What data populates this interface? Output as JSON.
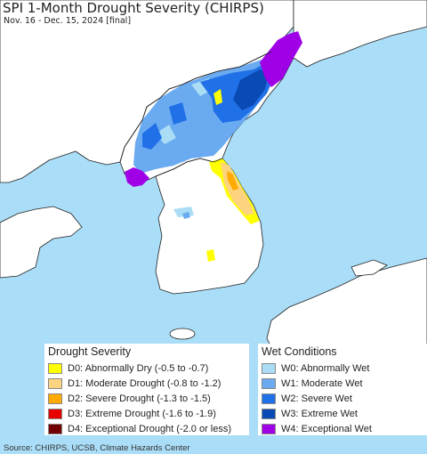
{
  "header": {
    "title": "SPI 1-Month Drought Severity (CHIRPS)",
    "subtitle": "Nov. 16 - Dec. 15, 2024 [final]"
  },
  "legend": {
    "drought": {
      "heading": "Drought Severity",
      "items": [
        {
          "label": "D0: Abnormally Dry (-0.5 to -0.7)",
          "color": "#ffff00"
        },
        {
          "label": "D1: Moderate Drought (-0.8 to -1.2)",
          "color": "#fcd37f"
        },
        {
          "label": "D2: Severe Drought (-1.3 to -1.5)",
          "color": "#ffaa00"
        },
        {
          "label": "D3: Extreme Drought (-1.6 to -1.9)",
          "color": "#e60000"
        },
        {
          "label": "D4: Exceptional Drought (-2.0 or less)",
          "color": "#730000"
        }
      ]
    },
    "wet": {
      "heading": "Wet Conditions",
      "items": [
        {
          "label": "W0: Abnormally Wet",
          "color": "#aadcf5"
        },
        {
          "label": "W1: Moderate Wet",
          "color": "#6aaaf0"
        },
        {
          "label": "W2: Severe Wet",
          "color": "#2070e8"
        },
        {
          "label": "W3: Extreme Wet",
          "color": "#0a4ab4"
        },
        {
          "label": "W4: Exceptional Wet",
          "color": "#a000e6"
        }
      ]
    }
  },
  "map": {
    "water_color": "#aaddf7",
    "land_color": "#ffffff"
  },
  "footer": {
    "source": "Source: CHIRPS, UCSB, Climate Hazards Center"
  }
}
